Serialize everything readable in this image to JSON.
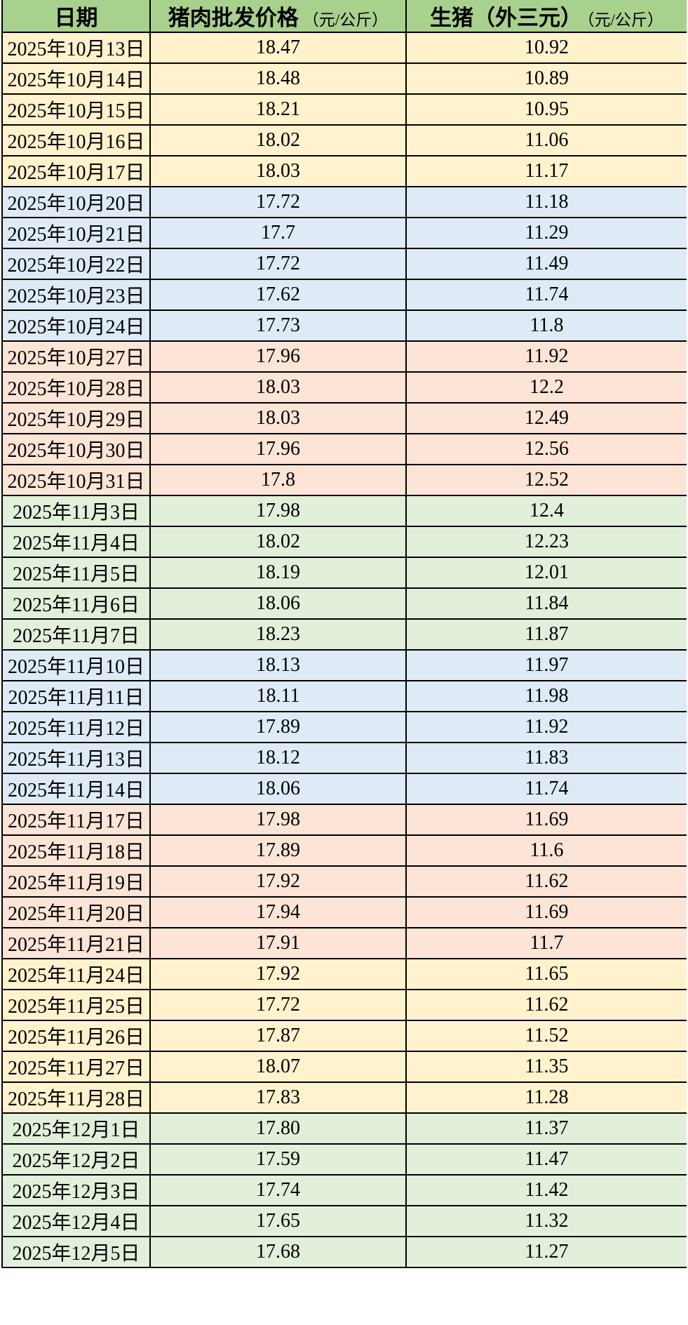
{
  "colors": {
    "header_bg": "#A9D18E",
    "row_yellow": "#FFF2CC",
    "row_blue": "#DEEBF7",
    "row_pink": "#FCE4D6",
    "row_green": "#E2EFDA",
    "border": "#000000",
    "text": "#000000"
  },
  "table": {
    "headers": [
      {
        "title": "日期",
        "unit": ""
      },
      {
        "title": "猪肉批发价格",
        "unit": "（元/公斤）"
      },
      {
        "title": "生猪（外三元）",
        "unit": "（元/公斤）"
      }
    ],
    "rows": [
      {
        "date": "2025年10月13日",
        "pork": "18.47",
        "hog": "10.92",
        "group": "yellow"
      },
      {
        "date": "2025年10月14日",
        "pork": "18.48",
        "hog": "10.89",
        "group": "yellow"
      },
      {
        "date": "2025年10月15日",
        "pork": "18.21",
        "hog": "10.95",
        "group": "yellow"
      },
      {
        "date": "2025年10月16日",
        "pork": "18.02",
        "hog": "11.06",
        "group": "yellow"
      },
      {
        "date": "2025年10月17日",
        "pork": "18.03",
        "hog": "11.17",
        "group": "yellow"
      },
      {
        "date": "2025年10月20日",
        "pork": "17.72",
        "hog": "11.18",
        "group": "blue"
      },
      {
        "date": "2025年10月21日",
        "pork": "17.7",
        "hog": "11.29",
        "group": "blue"
      },
      {
        "date": "2025年10月22日",
        "pork": "17.72",
        "hog": "11.49",
        "group": "blue"
      },
      {
        "date": "2025年10月23日",
        "pork": "17.62",
        "hog": "11.74",
        "group": "blue"
      },
      {
        "date": "2025年10月24日",
        "pork": "17.73",
        "hog": "11.8",
        "group": "blue"
      },
      {
        "date": "2025年10月27日",
        "pork": "17.96",
        "hog": "11.92",
        "group": "pink"
      },
      {
        "date": "2025年10月28日",
        "pork": "18.03",
        "hog": "12.2",
        "group": "pink"
      },
      {
        "date": "2025年10月29日",
        "pork": "18.03",
        "hog": "12.49",
        "group": "pink"
      },
      {
        "date": "2025年10月30日",
        "pork": "17.96",
        "hog": "12.56",
        "group": "pink"
      },
      {
        "date": "2025年10月31日",
        "pork": "17.8",
        "hog": "12.52",
        "group": "pink"
      },
      {
        "date": "2025年11月3日",
        "pork": "17.98",
        "hog": "12.4",
        "group": "green"
      },
      {
        "date": "2025年11月4日",
        "pork": "18.02",
        "hog": "12.23",
        "group": "green"
      },
      {
        "date": "2025年11月5日",
        "pork": "18.19",
        "hog": "12.01",
        "group": "green"
      },
      {
        "date": "2025年11月6日",
        "pork": "18.06",
        "hog": "11.84",
        "group": "green"
      },
      {
        "date": "2025年11月7日",
        "pork": "18.23",
        "hog": "11.87",
        "group": "green"
      },
      {
        "date": "2025年11月10日",
        "pork": "18.13",
        "hog": "11.97",
        "group": "blue"
      },
      {
        "date": "2025年11月11日",
        "pork": "18.11",
        "hog": "11.98",
        "group": "blue"
      },
      {
        "date": "2025年11月12日",
        "pork": "17.89",
        "hog": "11.92",
        "group": "blue"
      },
      {
        "date": "2025年11月13日",
        "pork": "18.12",
        "hog": "11.83",
        "group": "blue"
      },
      {
        "date": "2025年11月14日",
        "pork": "18.06",
        "hog": "11.74",
        "group": "blue"
      },
      {
        "date": "2025年11月17日",
        "pork": "17.98",
        "hog": "11.69",
        "group": "pink"
      },
      {
        "date": "2025年11月18日",
        "pork": "17.89",
        "hog": "11.6",
        "group": "pink"
      },
      {
        "date": "2025年11月19日",
        "pork": "17.92",
        "hog": "11.62",
        "group": "pink"
      },
      {
        "date": "2025年11月20日",
        "pork": "17.94",
        "hog": "11.69",
        "group": "pink"
      },
      {
        "date": "2025年11月21日",
        "pork": "17.91",
        "hog": "11.7",
        "group": "pink"
      },
      {
        "date": "2025年11月24日",
        "pork": "17.92",
        "hog": "11.65",
        "group": "yellow"
      },
      {
        "date": "2025年11月25日",
        "pork": "17.72",
        "hog": "11.62",
        "group": "yellow"
      },
      {
        "date": "2025年11月26日",
        "pork": "17.87",
        "hog": "11.52",
        "group": "yellow"
      },
      {
        "date": "2025年11月27日",
        "pork": "18.07",
        "hog": "11.35",
        "group": "yellow"
      },
      {
        "date": "2025年11月28日",
        "pork": "17.83",
        "hog": "11.28",
        "group": "yellow"
      },
      {
        "date": "2025年12月1日",
        "pork": "17.80",
        "hog": "11.37",
        "group": "green"
      },
      {
        "date": "2025年12月2日",
        "pork": "17.59",
        "hog": "11.47",
        "group": "green"
      },
      {
        "date": "2025年12月3日",
        "pork": "17.74",
        "hog": "11.42",
        "group": "green"
      },
      {
        "date": "2025年12月4日",
        "pork": "17.65",
        "hog": "11.32",
        "group": "green"
      },
      {
        "date": "2025年12月5日",
        "pork": "17.68",
        "hog": "11.27",
        "group": "green"
      }
    ]
  },
  "chart_data": {
    "type": "table",
    "title": "",
    "columns": [
      "日期",
      "猪肉批发价格（元/公斤）",
      "生猪（外三元）（元/公斤）"
    ],
    "rows": [
      [
        "2025年10月13日",
        18.47,
        10.92
      ],
      [
        "2025年10月14日",
        18.48,
        10.89
      ],
      [
        "2025年10月15日",
        18.21,
        10.95
      ],
      [
        "2025年10月16日",
        18.02,
        11.06
      ],
      [
        "2025年10月17日",
        18.03,
        11.17
      ],
      [
        "2025年10月20日",
        17.72,
        11.18
      ],
      [
        "2025年10月21日",
        17.7,
        11.29
      ],
      [
        "2025年10月22日",
        17.72,
        11.49
      ],
      [
        "2025年10月23日",
        17.62,
        11.74
      ],
      [
        "2025年10月24日",
        17.73,
        11.8
      ],
      [
        "2025年10月27日",
        17.96,
        11.92
      ],
      [
        "2025年10月28日",
        18.03,
        12.2
      ],
      [
        "2025年10月29日",
        18.03,
        12.49
      ],
      [
        "2025年10月30日",
        17.96,
        12.56
      ],
      [
        "2025年10月31日",
        17.8,
        12.52
      ],
      [
        "2025年11月3日",
        17.98,
        12.4
      ],
      [
        "2025年11月4日",
        18.02,
        12.23
      ],
      [
        "2025年11月5日",
        18.19,
        12.01
      ],
      [
        "2025年11月6日",
        18.06,
        11.84
      ],
      [
        "2025年11月7日",
        18.23,
        11.87
      ],
      [
        "2025年11月10日",
        18.13,
        11.97
      ],
      [
        "2025年11月11日",
        18.11,
        11.98
      ],
      [
        "2025年11月12日",
        17.89,
        11.92
      ],
      [
        "2025年11月13日",
        18.12,
        11.83
      ],
      [
        "2025年11月14日",
        18.06,
        11.74
      ],
      [
        "2025年11月17日",
        17.98,
        11.69
      ],
      [
        "2025年11月18日",
        17.89,
        11.6
      ],
      [
        "2025年11月19日",
        17.92,
        11.62
      ],
      [
        "2025年11月20日",
        17.94,
        11.69
      ],
      [
        "2025年11月21日",
        17.91,
        11.7
      ],
      [
        "2025年11月24日",
        17.92,
        11.65
      ],
      [
        "2025年11月25日",
        17.72,
        11.62
      ],
      [
        "2025年11月26日",
        17.87,
        11.52
      ],
      [
        "2025年11月27日",
        18.07,
        11.35
      ],
      [
        "2025年11月28日",
        17.83,
        11.28
      ],
      [
        "2025年12月1日",
        17.8,
        11.37
      ],
      [
        "2025年12月2日",
        17.59,
        11.47
      ],
      [
        "2025年12月3日",
        17.74,
        11.42
      ],
      [
        "2025年12月4日",
        17.65,
        11.32
      ],
      [
        "2025年12月5日",
        17.68,
        11.27
      ]
    ]
  }
}
